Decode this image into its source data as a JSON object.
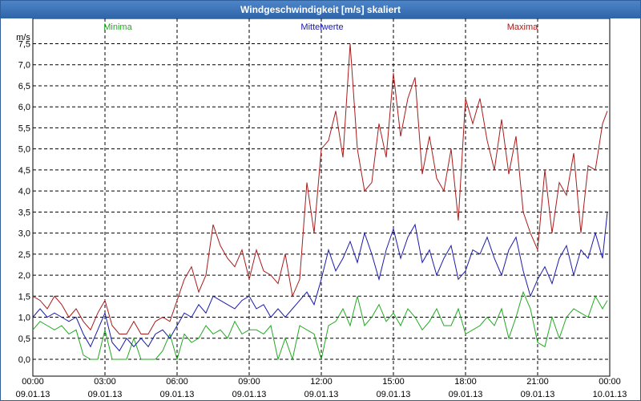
{
  "window": {
    "title": "Windgeschwindigkeit [m/s] skaliert"
  },
  "chart_data": {
    "type": "line",
    "title": "Windgeschwindigkeit [m/s] skaliert",
    "ylabel": "m/s",
    "ylim": [
      -0.4,
      8.1
    ],
    "y_ticks": [
      0,
      0.5,
      1,
      1.5,
      2,
      2.5,
      3,
      3.5,
      4,
      4.5,
      5,
      5.5,
      6,
      6.5,
      7,
      7.5
    ],
    "y_tick_labels": [
      "0,0",
      "0,5",
      "1,0",
      "1,5",
      "2,0",
      "2,5",
      "3,0",
      "3,5",
      "4,0",
      "4,5",
      "5,0",
      "5,5",
      "6,0",
      "6,5",
      "7,0",
      "7,5"
    ],
    "xlim": [
      0,
      24
    ],
    "x_ticks": [
      0,
      3,
      6,
      9,
      12,
      15,
      18,
      21,
      24
    ],
    "x_tick_times": [
      "00:00",
      "03:00",
      "06:00",
      "09:00",
      "12:00",
      "15:00",
      "18:00",
      "21:00",
      "00:00"
    ],
    "x_tick_dates": [
      "09.01.13",
      "09.01.13",
      "09.01.13",
      "09.01.13",
      "09.01.13",
      "09.01.13",
      "09.01.13",
      "09.01.13",
      "10.01.13"
    ],
    "grid": true,
    "series": [
      {
        "name": "Minima",
        "color": "#22aa22",
        "x": [
          0,
          0.3,
          0.6,
          0.9,
          1.2,
          1.5,
          1.8,
          2.1,
          2.4,
          2.7,
          3.0,
          3.3,
          3.6,
          3.9,
          4.2,
          4.5,
          4.8,
          5.1,
          5.4,
          5.7,
          6.0,
          6.3,
          6.6,
          6.9,
          7.2,
          7.5,
          7.8,
          8.1,
          8.4,
          8.7,
          9.0,
          9.3,
          9.6,
          9.9,
          10.2,
          10.5,
          10.8,
          11.1,
          11.4,
          11.7,
          12.0,
          12.3,
          12.6,
          12.9,
          13.2,
          13.5,
          13.8,
          14.1,
          14.4,
          14.7,
          15.0,
          15.3,
          15.6,
          15.9,
          16.2,
          16.5,
          16.8,
          17.1,
          17.4,
          17.7,
          18.0,
          18.3,
          18.6,
          18.9,
          19.2,
          19.5,
          19.8,
          20.1,
          20.4,
          20.7,
          21.0,
          21.3,
          21.6,
          21.9,
          22.2,
          22.5,
          22.8,
          23.1,
          23.4,
          23.7,
          23.9
        ],
        "values": [
          0.7,
          0.9,
          0.8,
          0.7,
          0.8,
          0.6,
          0.7,
          0.1,
          0.0,
          0.0,
          0.7,
          0.0,
          0.0,
          0.0,
          0.5,
          0.0,
          0.0,
          0.0,
          0.2,
          0.6,
          0.0,
          0.6,
          0.4,
          0.5,
          0.8,
          0.6,
          0.7,
          0.5,
          0.9,
          0.6,
          0.7,
          0.7,
          0.6,
          0.8,
          0.0,
          0.5,
          0.0,
          0.8,
          0.7,
          0.6,
          0.0,
          0.8,
          0.9,
          1.2,
          0.8,
          1.5,
          0.8,
          1.0,
          1.3,
          0.9,
          1.1,
          0.8,
          1.2,
          1.0,
          0.7,
          0.9,
          1.2,
          0.8,
          0.8,
          1.2,
          0.6,
          0.7,
          0.8,
          1.0,
          0.8,
          1.2,
          0.5,
          1.0,
          1.6,
          1.2,
          0.4,
          0.3,
          1.0,
          0.5,
          1.0,
          1.2,
          1.1,
          1.0,
          1.5,
          1.2,
          1.4
        ]
      },
      {
        "name": "Mittelwerte",
        "color": "#1a1aaa",
        "x": [
          0,
          0.3,
          0.6,
          0.9,
          1.2,
          1.5,
          1.8,
          2.1,
          2.4,
          2.7,
          3.0,
          3.3,
          3.6,
          3.9,
          4.2,
          4.5,
          4.8,
          5.1,
          5.4,
          5.7,
          6.0,
          6.3,
          6.6,
          6.9,
          7.2,
          7.5,
          7.8,
          8.1,
          8.4,
          8.7,
          9.0,
          9.3,
          9.6,
          9.9,
          10.2,
          10.5,
          10.8,
          11.1,
          11.4,
          11.7,
          12.0,
          12.3,
          12.6,
          12.9,
          13.2,
          13.5,
          13.8,
          14.1,
          14.4,
          14.7,
          15.0,
          15.3,
          15.6,
          15.9,
          16.2,
          16.5,
          16.8,
          17.1,
          17.4,
          17.7,
          18.0,
          18.3,
          18.6,
          18.9,
          19.2,
          19.5,
          19.8,
          20.1,
          20.4,
          20.7,
          21.0,
          21.3,
          21.6,
          21.9,
          22.2,
          22.5,
          22.8,
          23.1,
          23.4,
          23.7,
          23.9
        ],
        "values": [
          1.0,
          1.2,
          1.0,
          1.1,
          1.0,
          0.9,
          1.0,
          0.6,
          0.3,
          0.7,
          1.1,
          0.4,
          0.2,
          0.5,
          0.3,
          0.5,
          0.3,
          0.6,
          0.7,
          0.5,
          0.8,
          1.1,
          1.0,
          1.3,
          1.1,
          1.5,
          1.4,
          1.3,
          1.2,
          1.4,
          1.5,
          1.2,
          1.3,
          1.0,
          1.2,
          1.0,
          1.2,
          1.4,
          1.6,
          1.3,
          1.9,
          2.6,
          2.1,
          2.4,
          2.8,
          2.3,
          3.0,
          2.5,
          1.9,
          2.6,
          3.1,
          2.4,
          2.9,
          3.2,
          2.3,
          2.6,
          2.0,
          2.4,
          2.7,
          1.9,
          2.1,
          2.6,
          2.5,
          2.9,
          2.4,
          2.0,
          2.6,
          2.9,
          2.1,
          1.5,
          1.9,
          2.2,
          1.8,
          2.4,
          2.7,
          2.0,
          2.6,
          2.4,
          3.0,
          2.4,
          3.5
        ]
      },
      {
        "name": "Maxima",
        "color": "#aa1a1a",
        "x": [
          0,
          0.3,
          0.6,
          0.9,
          1.2,
          1.5,
          1.8,
          2.1,
          2.4,
          2.7,
          3.0,
          3.3,
          3.6,
          3.9,
          4.2,
          4.5,
          4.8,
          5.1,
          5.4,
          5.7,
          6.0,
          6.3,
          6.6,
          6.9,
          7.2,
          7.5,
          7.8,
          8.1,
          8.4,
          8.7,
          9.0,
          9.3,
          9.6,
          9.9,
          10.2,
          10.5,
          10.8,
          11.1,
          11.4,
          11.7,
          12.0,
          12.3,
          12.6,
          12.9,
          13.2,
          13.5,
          13.8,
          14.1,
          14.4,
          14.7,
          15.0,
          15.3,
          15.6,
          15.9,
          16.2,
          16.5,
          16.8,
          17.1,
          17.4,
          17.7,
          18.0,
          18.3,
          18.6,
          18.9,
          19.2,
          19.5,
          19.8,
          20.1,
          20.4,
          20.7,
          21.0,
          21.3,
          21.6,
          21.9,
          22.2,
          22.5,
          22.8,
          23.1,
          23.4,
          23.7,
          23.9
        ],
        "values": [
          1.5,
          1.4,
          1.2,
          1.5,
          1.3,
          1.0,
          1.2,
          0.9,
          0.7,
          1.1,
          1.4,
          0.8,
          0.6,
          0.6,
          0.9,
          0.6,
          0.6,
          0.9,
          1.0,
          0.9,
          1.4,
          1.9,
          2.2,
          1.6,
          2.0,
          3.2,
          2.7,
          2.4,
          2.2,
          2.6,
          1.9,
          2.6,
          2.1,
          2.0,
          1.8,
          2.5,
          1.5,
          1.9,
          4.2,
          3.0,
          5.0,
          5.2,
          5.9,
          4.8,
          7.5,
          5.0,
          4.0,
          4.2,
          5.6,
          4.8,
          6.8,
          5.3,
          6.2,
          6.7,
          4.4,
          5.3,
          4.3,
          4.0,
          5.0,
          3.3,
          6.2,
          5.6,
          6.2,
          5.2,
          4.5,
          5.7,
          4.4,
          5.3,
          3.5,
          3.0,
          2.6,
          4.5,
          3.0,
          4.2,
          3.9,
          4.9,
          3.0,
          4.6,
          4.5,
          5.6,
          5.9
        ]
      }
    ]
  }
}
